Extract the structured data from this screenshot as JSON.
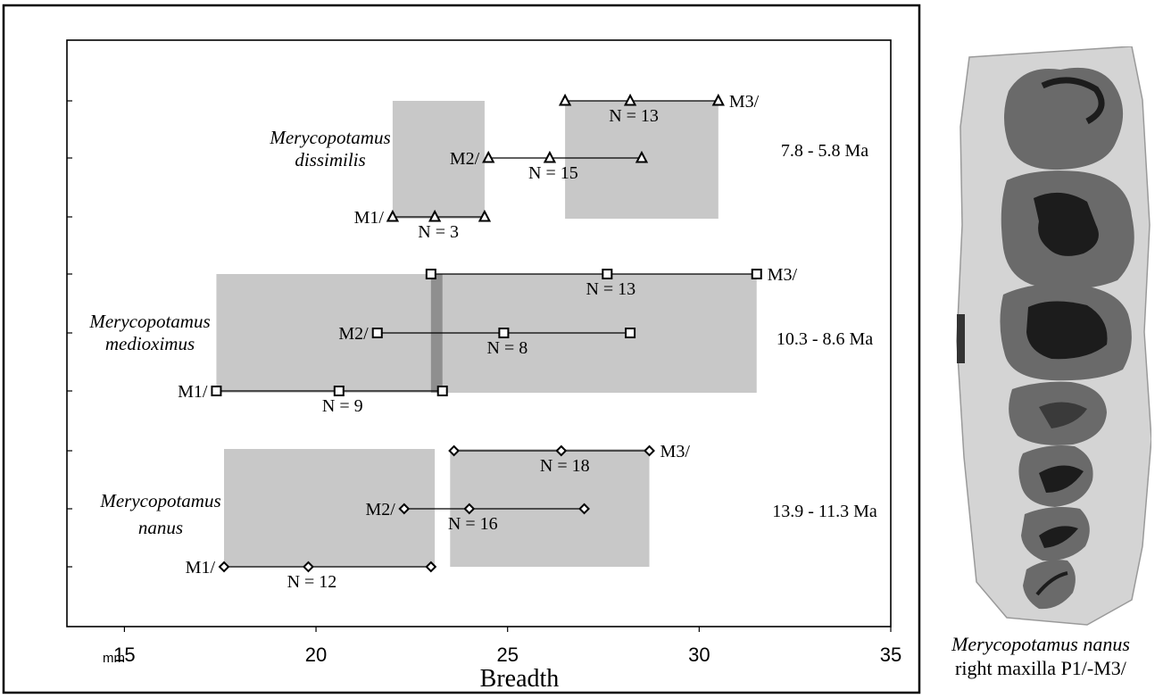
{
  "chart_data": {
    "type": "range",
    "xlabel": "Breadth",
    "x_unit_label": "mm",
    "xlim": [
      13.5,
      35
    ],
    "x_ticks": [
      15,
      20,
      25,
      30,
      35
    ],
    "groups": [
      {
        "name_line1": "Merycopotamus",
        "name_line2": "dissimilis",
        "age": "7.8 - 5.8 Ma",
        "marker": "triangle",
        "bands": [
          [
            22.0,
            24.4
          ],
          [
            26.5,
            30.5
          ]
        ],
        "series": [
          {
            "label": "M1/",
            "min": 22.0,
            "mean": 23.1,
            "max": 24.4,
            "n_label": "N = 3"
          },
          {
            "label": "M2/",
            "min": 24.5,
            "mean": 26.1,
            "max": 28.5,
            "n_label": "N = 15"
          },
          {
            "label": "M3/",
            "min": 26.5,
            "mean": 28.2,
            "max": 30.5,
            "n_label": "N = 13"
          }
        ]
      },
      {
        "name_line1": "Merycopotamus",
        "name_line2": "medioximus",
        "age": "10.3 - 8.6 Ma",
        "marker": "square",
        "bands": [
          [
            17.4,
            31.5
          ]
        ],
        "overlap": [
          23.0,
          23.3
        ],
        "series": [
          {
            "label": "M1/",
            "min": 17.4,
            "mean": 20.6,
            "max": 23.3,
            "n_label": "N = 9"
          },
          {
            "label": "M2/",
            "min": 21.6,
            "mean": 24.9,
            "max": 28.2,
            "n_label": "N = 8"
          },
          {
            "label": "M3/",
            "min": 23.0,
            "mean": 27.6,
            "max": 31.5,
            "n_label": "N = 13"
          }
        ]
      },
      {
        "name_line1": "Merycopotamus",
        "name_line2": "nanus",
        "age": "13.9 - 11.3 Ma",
        "marker": "diamond",
        "bands": [
          [
            17.6,
            23.1
          ],
          [
            23.5,
            28.7
          ]
        ],
        "series": [
          {
            "label": "M1/",
            "min": 17.6,
            "mean": 19.8,
            "max": 23.0,
            "n_label": "N = 12"
          },
          {
            "label": "M2/",
            "min": 22.3,
            "mean": 24.0,
            "max": 27.0,
            "n_label": "N = 16"
          },
          {
            "label": "M3/",
            "min": 23.6,
            "mean": 26.4,
            "max": 28.7,
            "n_label": "N = 18"
          }
        ]
      }
    ]
  },
  "caption": {
    "line1": "Merycopotamus nanus",
    "line2": "right maxilla P1/-M3/"
  },
  "colors": {
    "band": "#c8c8c8",
    "overlap": "#8f8f8f",
    "specimen_bg": "#d4d4d4",
    "tooth": "#6a6a6a",
    "dentine": "#1c1c1c"
  }
}
